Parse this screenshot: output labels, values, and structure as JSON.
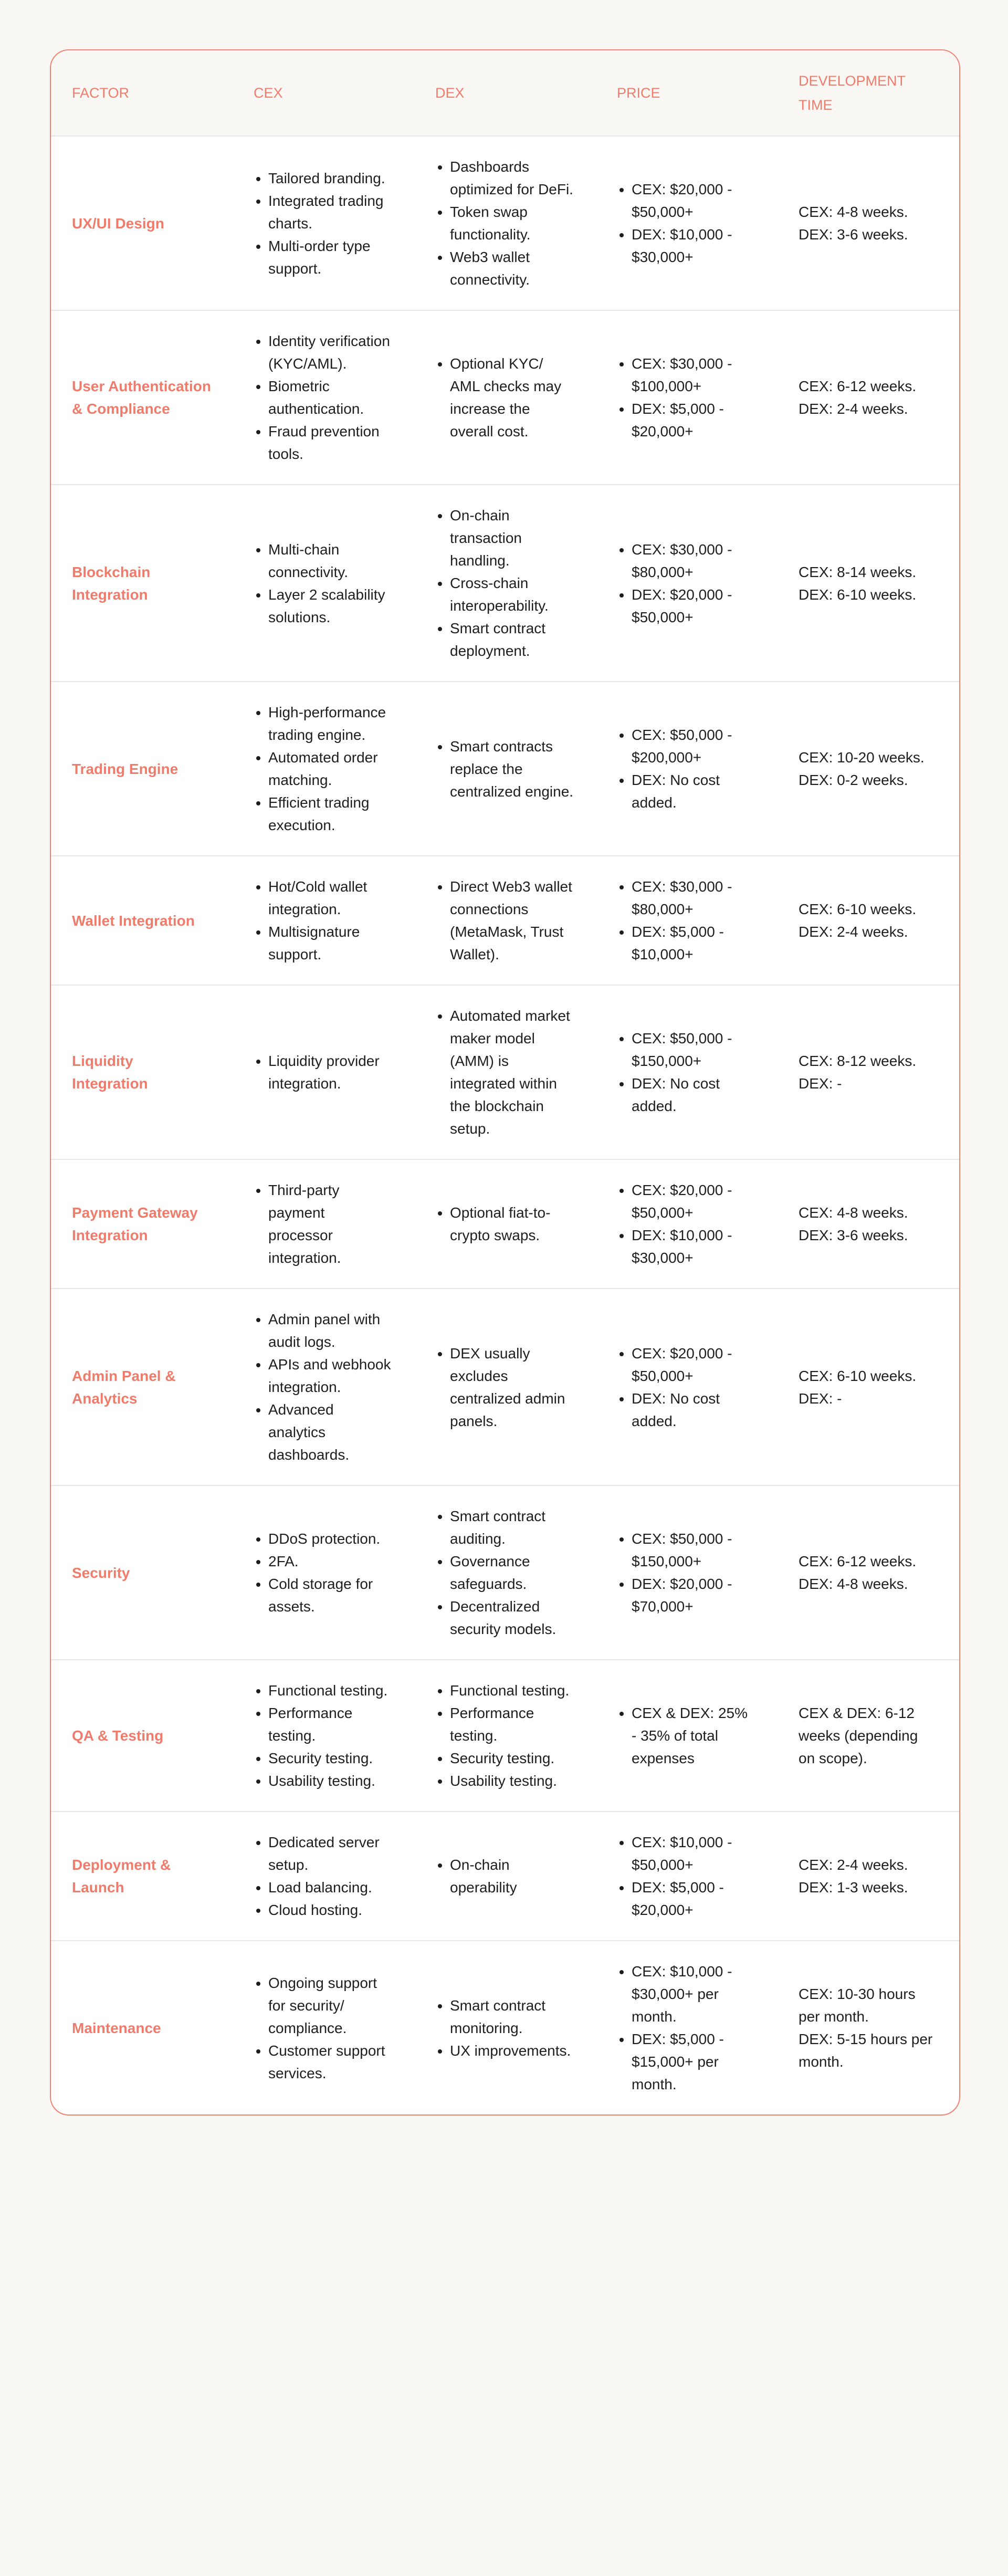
{
  "accent_color": "#ef7b6b",
  "headers": [
    "FACTOR",
    "CEX",
    "DEX",
    "PRICE",
    "DEVELOPMENT TIME"
  ],
  "rows": [
    {
      "factor": "UX/UI Design",
      "cex": [
        "Tailored branding.",
        "Integrated trading charts.",
        "Multi-order type support."
      ],
      "dex": [
        "Dashboards optimized for DeFi.",
        "Token swap functionality.",
        "Web3 wallet connectivity."
      ],
      "price": [
        "CEX: $20,000 - $50,000+",
        "DEX: $10,000 - $30,000+"
      ],
      "time": "CEX: 4-8 weeks.\nDEX: 3-6 weeks."
    },
    {
      "factor": "User Authentication & Compliance",
      "cex": [
        "Identity verification (KYC/AML).",
        "Biometric authentication.",
        "Fraud prevention tools."
      ],
      "dex": [
        "Optional KYC/ AML checks may increase the overall cost."
      ],
      "price": [
        "CEX: $30,000 - $100,000+",
        "DEX: $5,000 - $20,000+"
      ],
      "time": "CEX: 6-12 weeks.\nDEX: 2-4 weeks."
    },
    {
      "factor": "Blockchain Integration",
      "cex": [
        "Multi-chain connectivity.",
        "Layer 2 scalability solutions."
      ],
      "dex": [
        "On-chain transaction handling.",
        "Cross-chain interoperability.",
        "Smart contract deployment."
      ],
      "price": [
        "CEX: $30,000 - $80,000+",
        "DEX: $20,000 - $50,000+"
      ],
      "time": "CEX: 8-14 weeks.\nDEX: 6-10 weeks."
    },
    {
      "factor": "Trading Engine",
      "cex": [
        "High-performance trading engine.",
        "Automated order matching.",
        "Efficient trading execution."
      ],
      "dex": [
        "Smart contracts replace the centralized engine."
      ],
      "price": [
        "CEX: $50,000 - $200,000+",
        "DEX: No cost added."
      ],
      "time": "CEX: 10-20 weeks.\nDEX: 0-2 weeks."
    },
    {
      "factor": "Wallet Integration",
      "cex": [
        "Hot/Cold wallet integration.",
        "Multisignature support."
      ],
      "dex": [
        "Direct Web3 wallet connections (MetaMask, Trust Wallet)."
      ],
      "price": [
        "CEX: $30,000 - $80,000+",
        "DEX: $5,000 - $10,000+"
      ],
      "time": "CEX: 6-10 weeks.\nDEX: 2-4 weeks."
    },
    {
      "factor": "Liquidity Integration",
      "cex": [
        "Liquidity provider integration."
      ],
      "dex": [
        "Automated market maker model (AMM) is integrated within the blockchain setup."
      ],
      "price": [
        "CEX: $50,000 - $150,000+",
        "DEX: No cost added."
      ],
      "time": "CEX: 8-12 weeks.\nDEX: -"
    },
    {
      "factor": "Payment Gateway Integration",
      "cex": [
        "Third-party payment processor integration."
      ],
      "dex": [
        "Optional fiat-to-crypto swaps."
      ],
      "price": [
        "CEX: $20,000 - $50,000+",
        "DEX: $10,000 - $30,000+"
      ],
      "time": "CEX: 4-8 weeks.\nDEX: 3-6 weeks."
    },
    {
      "factor": "Admin Panel & Analytics",
      "cex": [
        "Admin panel with audit logs.",
        "APIs and webhook integration.",
        "Advanced analytics dashboards."
      ],
      "dex": [
        "DEX usually excludes centralized admin panels."
      ],
      "price": [
        "CEX: $20,000 - $50,000+",
        "DEX: No cost added."
      ],
      "time": "CEX: 6-10 weeks.\nDEX: -"
    },
    {
      "factor": "Security",
      "cex": [
        "DDoS protection.",
        "2FA.",
        "Cold storage for assets."
      ],
      "dex": [
        "Smart contract auditing.",
        "Governance safeguards.",
        "Decentralized security models."
      ],
      "price": [
        "CEX: $50,000 - $150,000+",
        "DEX: $20,000 - $70,000+"
      ],
      "time": "CEX: 6-12 weeks.\nDEX: 4-8 weeks."
    },
    {
      "factor": "QA & Testing",
      "cex": [
        "Functional testing.",
        "Performance testing.",
        "Security testing.",
        "Usability testing."
      ],
      "dex": [
        "Functional testing.",
        "Performance testing.",
        "Security testing.",
        "Usability testing."
      ],
      "price": [
        "CEX & DEX: 25% - 35% of total expenses"
      ],
      "time": "CEX & DEX: 6-12 weeks (depending on scope)."
    },
    {
      "factor": "Deployment & Launch",
      "cex": [
        "Dedicated server setup.",
        "Load balancing.",
        "Cloud hosting."
      ],
      "dex": [
        "On-chain operability"
      ],
      "price": [
        "CEX: $10,000 - $50,000+",
        "DEX: $5,000 - $20,000+"
      ],
      "time": "CEX: 2-4 weeks.\nDEX: 1-3 weeks."
    },
    {
      "factor": "Maintenance",
      "cex": [
        "Ongoing support for security/ compliance.",
        "Customer support services."
      ],
      "dex": [
        "Smart contract monitoring.",
        "UX improvements."
      ],
      "price": [
        "CEX: $10,000 - $30,000+ per month.",
        "DEX: $5,000 - $15,000+ per month."
      ],
      "time": "CEX: 10-30 hours per month.\nDEX: 5-15 hours per month."
    }
  ]
}
